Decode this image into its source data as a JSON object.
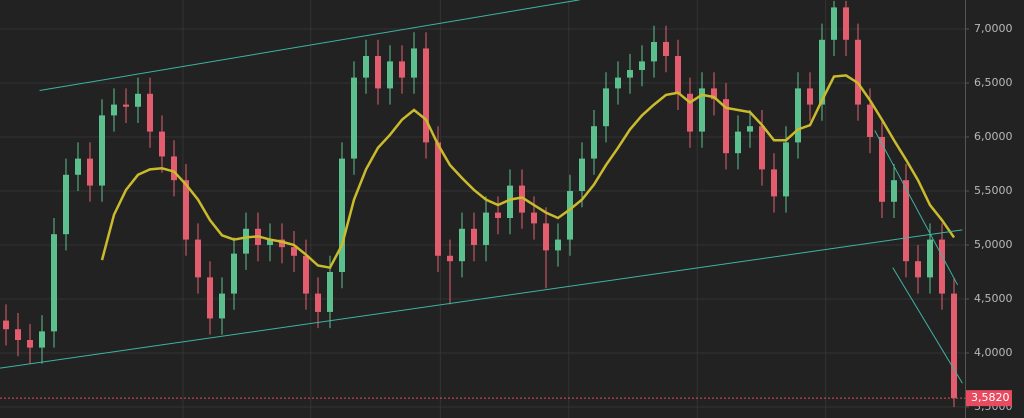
{
  "chart_data": {
    "type": "candlestick",
    "grid": true,
    "ylim": [
      3.398,
      7.2685
    ],
    "yticks": [
      {
        "value": 3.5,
        "label": "3,5000"
      },
      {
        "value": 4,
        "label": "4,0000"
      },
      {
        "value": 4.5,
        "label": "4,5000"
      },
      {
        "value": 5,
        "label": "5,0000"
      },
      {
        "value": 5.5,
        "label": "5,5000"
      },
      {
        "value": 6,
        "label": "6,0000"
      },
      {
        "value": 6.5,
        "label": "6,5000"
      },
      {
        "value": 7,
        "label": "7,0000"
      }
    ],
    "xgrid": [
      14.75,
      25.4,
      36.2,
      46.9,
      57.6,
      68.3
    ],
    "up_color": "#5cbf8e",
    "down_color": "#e35d6e",
    "open": [
      4.3,
      4.22,
      4.12,
      4.05,
      4.2,
      5.1,
      5.65,
      5.8,
      5.55,
      6.2,
      6.3,
      6.28,
      6.4,
      6.05,
      5.82,
      5.6,
      5.05,
      4.7,
      4.32,
      4.55,
      4.92,
      5.15,
      5.0,
      5.05,
      4.98,
      4.9,
      4.55,
      4.38,
      4.75,
      5.8,
      6.55,
      6.75,
      6.45,
      6.7,
      6.55,
      6.82,
      5.95,
      4.9,
      4.85,
      5.15,
      5.0,
      5.3,
      5.25,
      5.55,
      5.3,
      5.2,
      4.95,
      5.05,
      5.5,
      5.8,
      6.1,
      6.45,
      6.55,
      6.62,
      6.7,
      6.88,
      6.75,
      6.4,
      6.05,
      6.45,
      6.35,
      5.85,
      6.05,
      6.1,
      5.7,
      5.45,
      5.95,
      6.45,
      6.3,
      6.9,
      7.2,
      6.9,
      6.3,
      6.0,
      5.4,
      5.6,
      4.85,
      4.7,
      5.05,
      4.55
    ],
    "high": [
      4.45,
      4.37,
      4.27,
      4.35,
      5.25,
      5.8,
      5.95,
      5.95,
      6.35,
      6.45,
      6.45,
      6.55,
      6.55,
      6.2,
      5.97,
      5.75,
      5.2,
      4.85,
      4.7,
      5.07,
      5.3,
      5.3,
      5.2,
      5.2,
      5.13,
      5.05,
      4.7,
      4.9,
      5.95,
      6.7,
      6.9,
      6.9,
      6.85,
      6.85,
      6.97,
      6.97,
      6.1,
      5.05,
      5.3,
      5.3,
      5.45,
      5.45,
      5.7,
      5.7,
      5.45,
      5.35,
      5.2,
      5.65,
      5.95,
      6.25,
      6.6,
      6.7,
      6.77,
      6.85,
      7.03,
      7.03,
      6.9,
      6.55,
      6.6,
      6.6,
      6.5,
      6.2,
      6.25,
      6.25,
      5.85,
      6.1,
      6.6,
      6.6,
      7.05,
      7.26,
      7.26,
      7.05,
      6.45,
      6.15,
      5.75,
      5.75,
      5.0,
      5.2,
      5.2,
      4.7
    ],
    "low": [
      4.07,
      3.97,
      3.9,
      3.9,
      4.05,
      4.95,
      5.5,
      5.4,
      5.4,
      6.05,
      6.13,
      6.13,
      5.9,
      5.67,
      5.45,
      4.9,
      4.55,
      4.17,
      4.17,
      4.4,
      4.77,
      4.85,
      4.85,
      4.83,
      4.75,
      4.4,
      4.23,
      4.23,
      4.6,
      5.65,
      6.4,
      6.3,
      6.3,
      6.4,
      6.4,
      5.8,
      4.75,
      4.45,
      4.7,
      4.85,
      4.85,
      5.1,
      5.1,
      5.15,
      5.05,
      4.6,
      4.8,
      4.9,
      5.35,
      5.65,
      5.95,
      6.3,
      6.4,
      6.47,
      6.55,
      6.6,
      6.25,
      5.9,
      5.9,
      6.2,
      5.7,
      5.7,
      5.9,
      5.55,
      5.3,
      5.3,
      5.8,
      6.15,
      6.15,
      6.75,
      6.75,
      6.15,
      5.85,
      5.25,
      5.25,
      4.7,
      4.55,
      4.55,
      4.4,
      3.5
    ],
    "close": [
      4.22,
      4.12,
      4.05,
      4.2,
      5.1,
      5.65,
      5.8,
      5.55,
      6.2,
      6.3,
      6.28,
      6.4,
      6.05,
      5.82,
      5.6,
      5.05,
      4.7,
      4.32,
      4.55,
      4.92,
      5.15,
      5.0,
      5.05,
      4.98,
      4.9,
      4.55,
      4.38,
      4.75,
      5.8,
      6.55,
      6.75,
      6.45,
      6.7,
      6.55,
      6.82,
      5.95,
      4.9,
      4.85,
      5.15,
      5.0,
      5.3,
      5.25,
      5.55,
      5.3,
      5.2,
      4.95,
      5.05,
      5.5,
      5.8,
      6.1,
      6.45,
      6.55,
      6.62,
      6.7,
      6.88,
      6.75,
      6.4,
      6.05,
      6.45,
      6.35,
      5.85,
      6.05,
      6.1,
      5.7,
      5.45,
      5.95,
      6.45,
      6.3,
      6.9,
      7.2,
      6.9,
      6.3,
      6.0,
      5.4,
      5.6,
      4.85,
      4.7,
      5.05,
      4.55,
      3.582
    ],
    "moving_average": {
      "color": "#c9bb2c",
      "values": [
        null,
        null,
        null,
        null,
        null,
        null,
        null,
        null,
        4.86,
        5.28,
        5.51,
        5.65,
        5.7,
        5.71,
        5.68,
        5.56,
        5.42,
        5.23,
        5.09,
        5.05,
        5.07,
        5.08,
        5.05,
        5.03,
        5.0,
        4.91,
        4.81,
        4.79,
        5.0,
        5.42,
        5.7,
        5.9,
        6.02,
        6.16,
        6.25,
        6.16,
        5.93,
        5.74,
        5.62,
        5.51,
        5.42,
        5.37,
        5.42,
        5.44,
        5.37,
        5.3,
        5.25,
        5.33,
        5.42,
        5.56,
        5.74,
        5.9,
        6.07,
        6.2,
        6.3,
        6.39,
        6.41,
        6.32,
        6.39,
        6.37,
        6.27,
        6.25,
        6.23,
        6.11,
        5.97,
        5.97,
        6.07,
        6.11,
        6.34,
        6.56,
        6.57,
        6.5,
        6.34,
        6.16,
        5.97,
        5.79,
        5.6,
        5.37,
        5.23,
        5.07
      ]
    },
    "trendline_color": "#3fb3a3",
    "trendlines": [
      {
        "x": [
          2.8,
          47.8
        ],
        "y": [
          6.43,
          7.27
        ]
      },
      {
        "x": [
          -0.5,
          79.7
        ],
        "y": [
          3.86,
          5.14
        ]
      },
      {
        "x": [
          72.4,
          79.3
        ],
        "y": [
          6.06,
          4.63
        ]
      },
      {
        "x": [
          73.9,
          79.7
        ],
        "y": [
          4.79,
          3.72
        ]
      }
    ],
    "current_price": {
      "value": 3.582,
      "label": "3,5820"
    },
    "current_price_color": "#e84a5f"
  }
}
